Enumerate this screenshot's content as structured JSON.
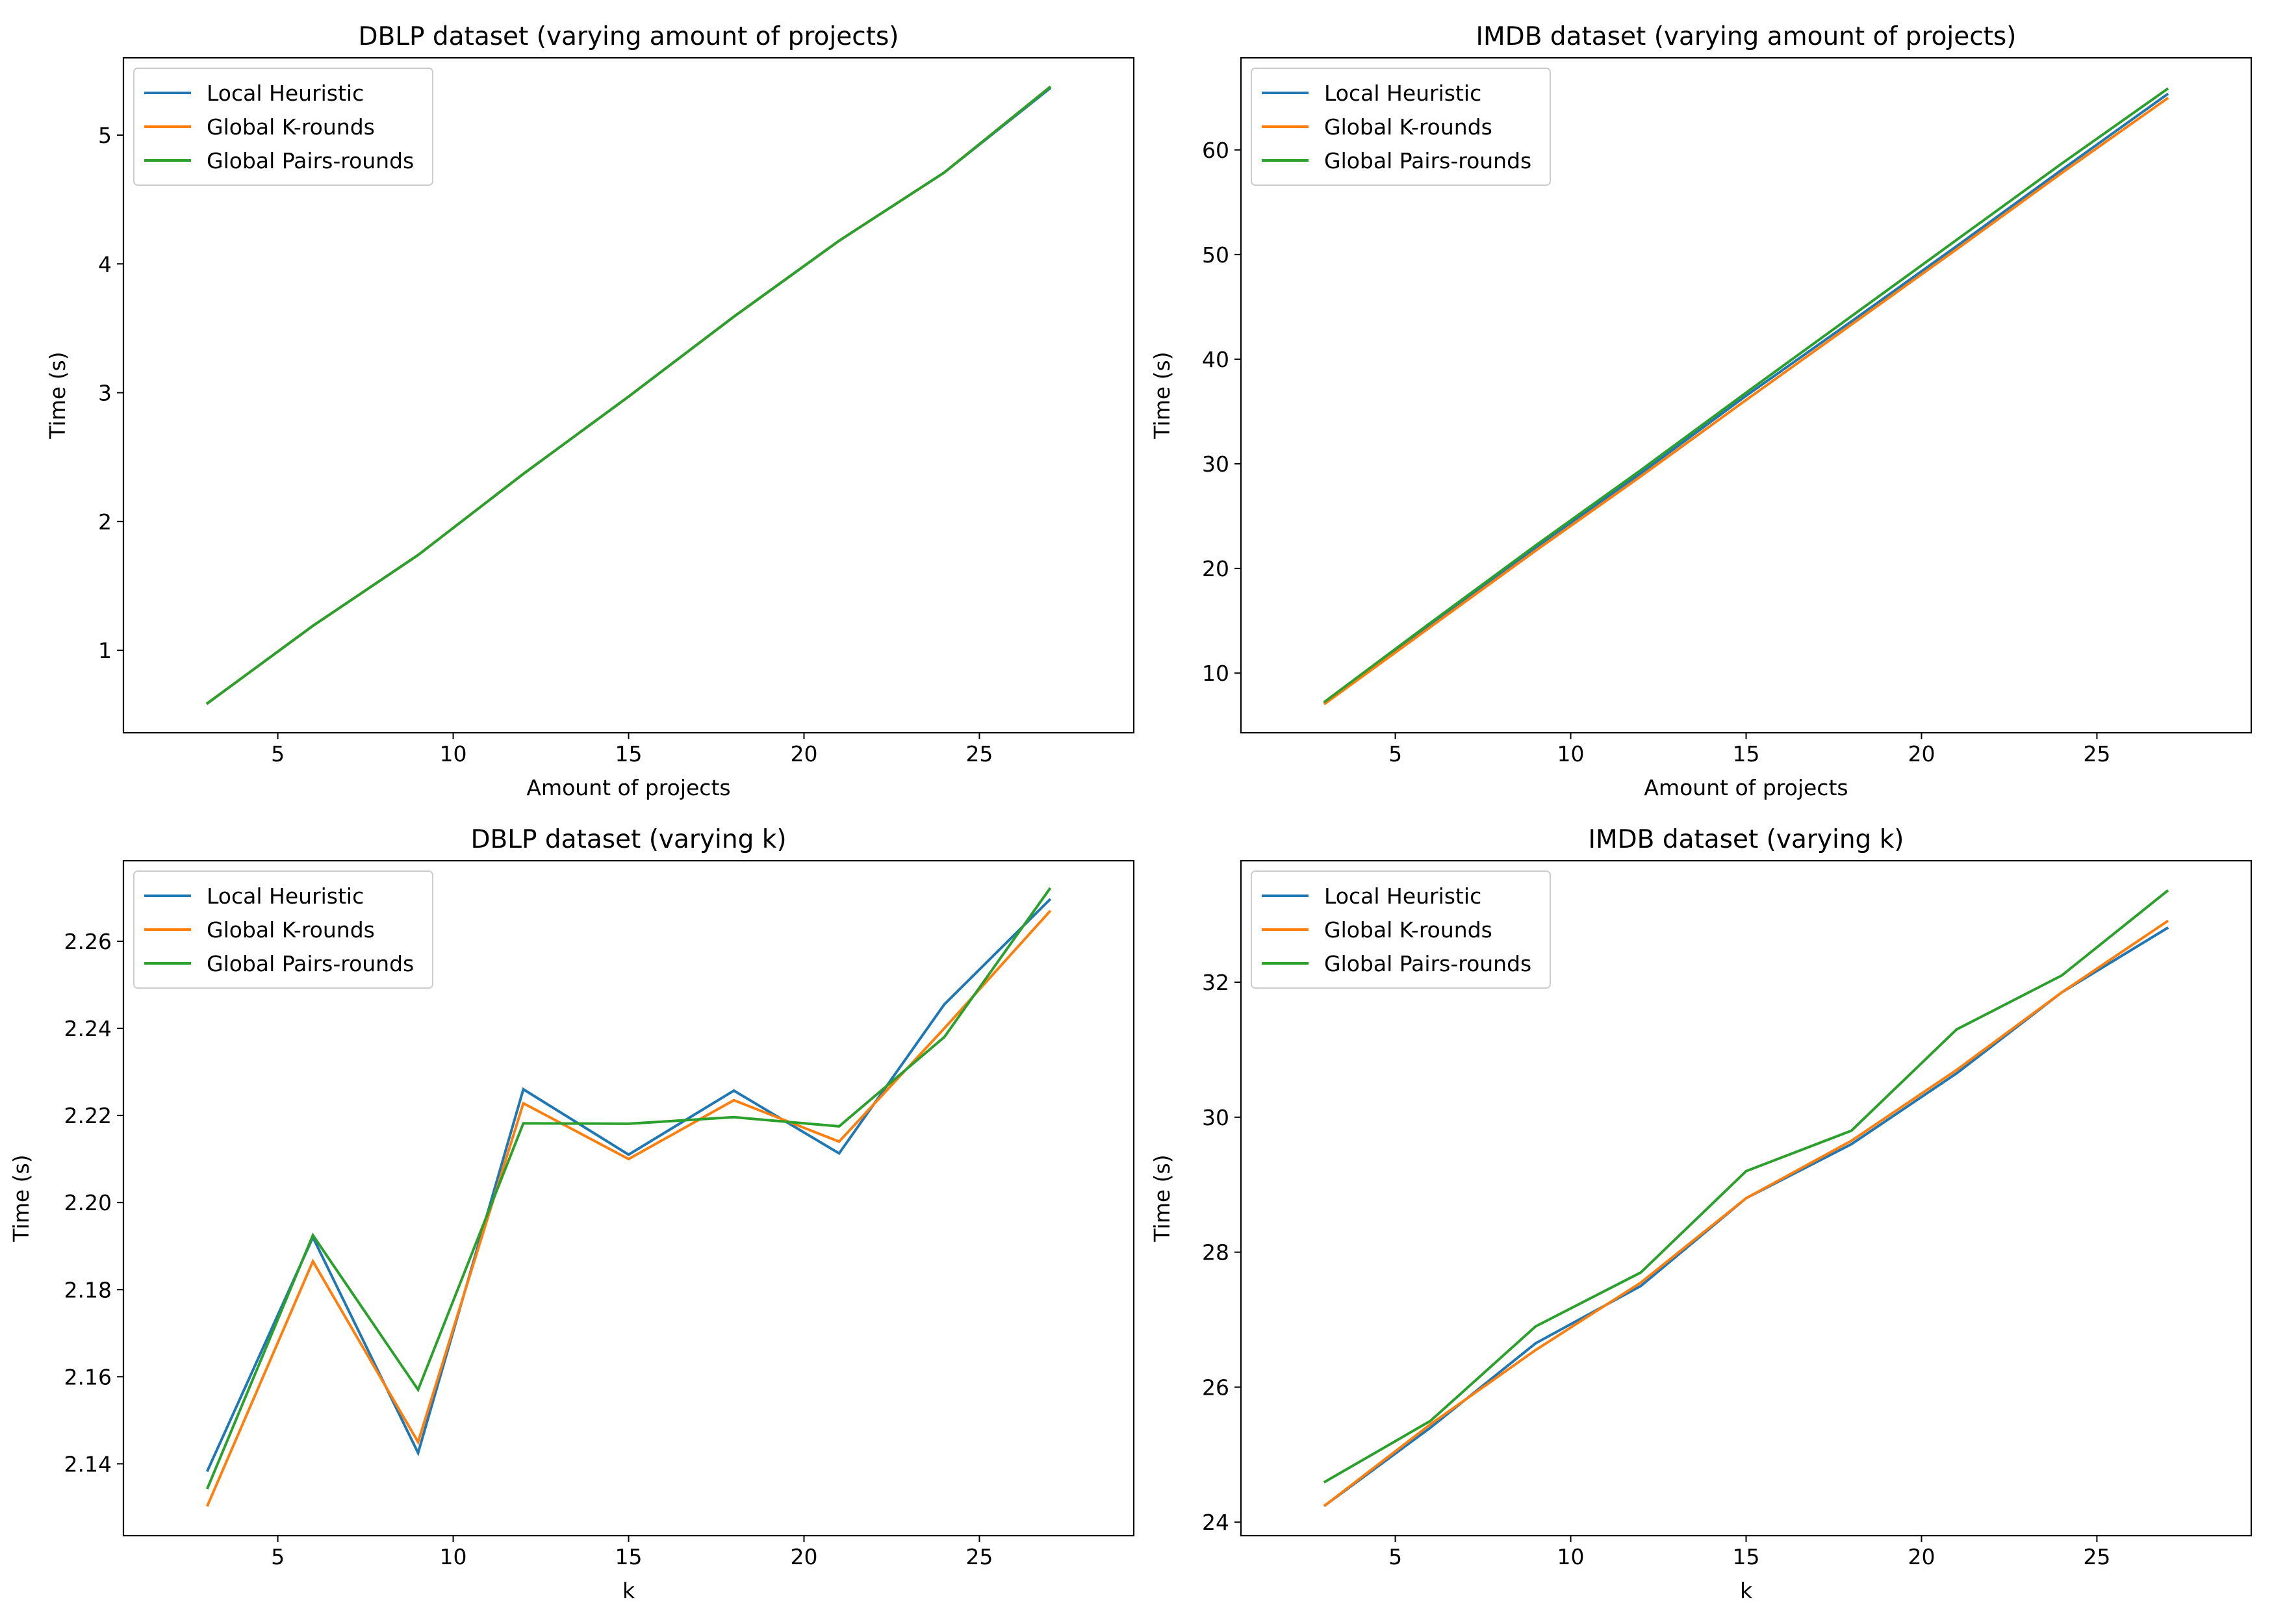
{
  "chart_data": [
    {
      "type": "line",
      "title": "DBLP dataset (varying amount of projects)",
      "xlabel": "Amount of projects",
      "ylabel": "Time (s)",
      "x": [
        3,
        6,
        9,
        12,
        15,
        18,
        21,
        24,
        27
      ],
      "xlim": [
        0.6,
        29.4
      ],
      "ylim": [
        0.36,
        5.6
      ],
      "xticks": [
        5,
        10,
        15,
        20,
        25
      ],
      "yticks": [
        1,
        2,
        3,
        4,
        5
      ],
      "tick_decimals": 0,
      "grid": false,
      "legend_position": "top-left",
      "series": [
        {
          "name": "Local Heuristic",
          "color": "#1f77b4",
          "values": [
            0.59,
            1.19,
            1.74,
            2.37,
            2.97,
            3.59,
            4.18,
            4.71,
            5.36
          ]
        },
        {
          "name": "Global K-rounds",
          "color": "#ff7f0e",
          "values": [
            0.59,
            1.19,
            1.74,
            2.37,
            2.97,
            3.59,
            4.18,
            4.71,
            5.37
          ]
        },
        {
          "name": "Global Pairs-rounds",
          "color": "#2ca02c",
          "values": [
            0.59,
            1.19,
            1.74,
            2.37,
            2.97,
            3.59,
            4.18,
            4.71,
            5.37
          ]
        }
      ]
    },
    {
      "type": "line",
      "title": "IMDB dataset (varying amount of projects)",
      "xlabel": "Amount of projects",
      "ylabel": "Time (s)",
      "x": [
        3,
        6,
        9,
        12,
        15,
        18,
        21,
        24,
        27
      ],
      "xlim": [
        0.6,
        29.4
      ],
      "ylim": [
        4.3,
        68.8
      ],
      "xticks": [
        5,
        10,
        15,
        20,
        25
      ],
      "yticks": [
        10,
        20,
        30,
        40,
        50,
        60
      ],
      "tick_decimals": 0,
      "grid": false,
      "legend_position": "top-left",
      "series": [
        {
          "name": "Local Heuristic",
          "color": "#1f77b4",
          "values": [
            7.2,
            14.7,
            22.0,
            29.1,
            36.5,
            43.6,
            50.8,
            58.1,
            65.3
          ]
        },
        {
          "name": "Global K-rounds",
          "color": "#ff7f0e",
          "values": [
            7.1,
            14.4,
            21.7,
            28.8,
            36.1,
            43.3,
            50.5,
            57.8,
            64.9
          ]
        },
        {
          "name": "Global Pairs-rounds",
          "color": "#2ca02c",
          "values": [
            7.3,
            14.8,
            22.2,
            29.4,
            36.8,
            44.1,
            51.4,
            58.7,
            65.8
          ]
        }
      ]
    },
    {
      "type": "line",
      "title": "DBLP dataset (varying k)",
      "xlabel": "k",
      "ylabel": "Time (s)",
      "x": [
        3,
        6,
        9,
        12,
        15,
        18,
        21,
        24,
        27
      ],
      "xlim": [
        0.6,
        29.4
      ],
      "ylim": [
        2.1235,
        2.2785
      ],
      "xticks": [
        5,
        10,
        15,
        20,
        25
      ],
      "yticks": [
        2.14,
        2.16,
        2.18,
        2.2,
        2.22,
        2.24,
        2.26
      ],
      "tick_decimals": 2,
      "grid": false,
      "legend_position": "top-left",
      "series": [
        {
          "name": "Local Heuristic",
          "color": "#1f77b4",
          "values": [
            2.1385,
            2.192,
            2.1425,
            2.226,
            2.211,
            2.2257,
            2.2113,
            2.2455,
            2.2695
          ]
        },
        {
          "name": "Global K-rounds",
          "color": "#ff7f0e",
          "values": [
            2.1305,
            2.1865,
            2.145,
            2.2228,
            2.21,
            2.2235,
            2.214,
            2.24,
            2.2668
          ]
        },
        {
          "name": "Global Pairs-rounds",
          "color": "#2ca02c",
          "values": [
            2.1345,
            2.1925,
            2.157,
            2.2182,
            2.2181,
            2.2196,
            2.2175,
            2.238,
            2.272
          ]
        }
      ]
    },
    {
      "type": "line",
      "title": "IMDB dataset (varying k)",
      "xlabel": "k",
      "ylabel": "Time (s)",
      "x": [
        3,
        6,
        9,
        12,
        15,
        18,
        21,
        24,
        27
      ],
      "xlim": [
        0.6,
        29.4
      ],
      "ylim": [
        23.8,
        33.8
      ],
      "xticks": [
        5,
        10,
        15,
        20,
        25
      ],
      "yticks": [
        24,
        26,
        28,
        30,
        32
      ],
      "tick_decimals": 0,
      "grid": false,
      "legend_position": "top-left",
      "series": [
        {
          "name": "Local Heuristic",
          "color": "#1f77b4",
          "values": [
            24.25,
            25.4,
            26.65,
            27.5,
            28.8,
            29.6,
            30.65,
            31.85,
            32.8
          ]
        },
        {
          "name": "Global K-rounds",
          "color": "#ff7f0e",
          "values": [
            24.25,
            25.45,
            26.55,
            27.55,
            28.8,
            29.65,
            30.7,
            31.85,
            32.9
          ]
        },
        {
          "name": "Global Pairs-rounds",
          "color": "#2ca02c",
          "values": [
            24.6,
            25.5,
            26.9,
            27.7,
            29.2,
            29.8,
            31.3,
            32.1,
            33.35
          ]
        }
      ]
    }
  ]
}
